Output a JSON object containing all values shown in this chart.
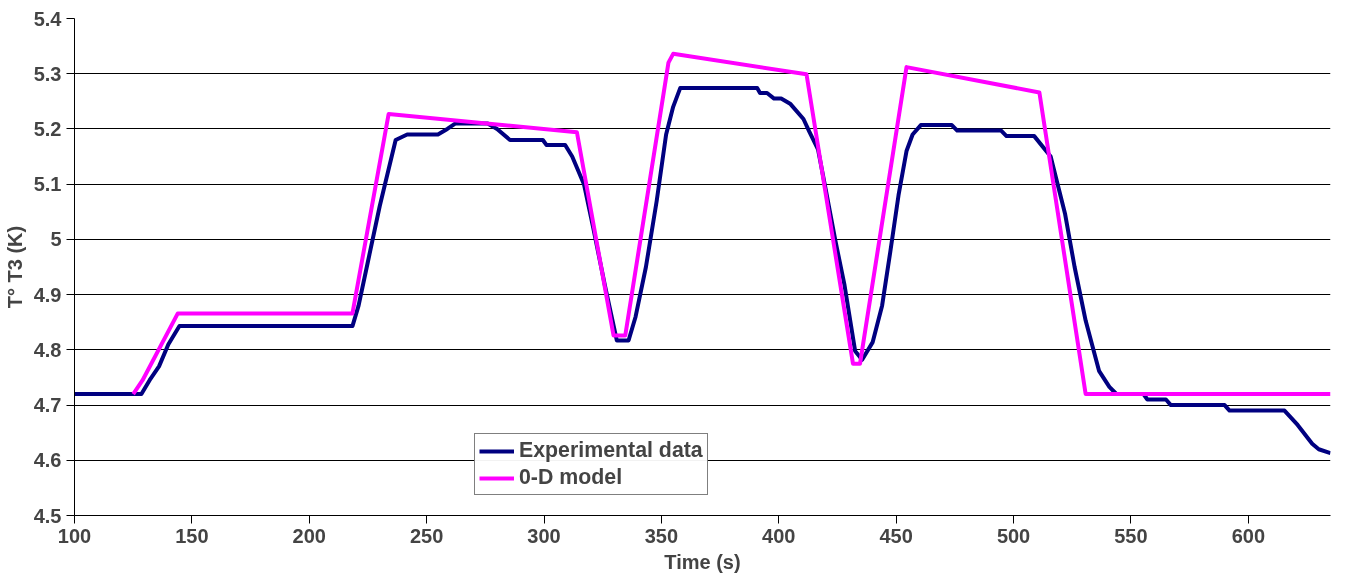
{
  "chart_data": {
    "type": "line",
    "xlabel": "Time (s)",
    "ylabel": "T° T3 (K)",
    "xlim": [
      100,
      635
    ],
    "ylim": [
      4.5,
      5.4
    ],
    "xticks": [
      100,
      150,
      200,
      250,
      300,
      350,
      400,
      450,
      500,
      550,
      600
    ],
    "yticks": [
      4.5,
      4.6,
      4.7,
      4.8,
      4.9,
      5,
      5.1,
      5.2,
      5.3,
      5.4
    ],
    "grid": "y",
    "legend": "bottom",
    "marker": "none",
    "line_style": "solid",
    "series": [
      {
        "name": "Experimental data",
        "color": "#000080",
        "x": [
          100,
          128.5,
          132,
          136,
          140,
          144.7,
          218.4,
          221,
          225,
          230,
          236.8,
          241.7,
          254.8,
          258.8,
          262.3,
          276,
          280,
          285.5,
          299.5,
          301,
          309,
          312,
          317,
          321,
          325.9,
          331,
          336,
          339,
          343.4,
          348,
          352,
          355,
          358,
          390.8,
          392,
          395,
          398,
          401,
          405,
          410.5,
          413,
          416.7,
          420,
          424,
          428,
          432.5,
          435.5,
          440,
          444,
          447.4,
          451,
          454.4,
          457,
          460.5,
          473.7,
          476,
          494.7,
          497,
          508.8,
          515.8,
          521.9,
          526,
          530.7,
          536.4,
          540.8,
          543.8,
          555.3,
          557,
          564.9,
          567,
          589.9,
          592,
          615.4,
          621,
          627.2,
          630,
          635
        ],
        "values": [
          4.72,
          4.72,
          4.745,
          4.77,
          4.81,
          4.843,
          4.843,
          4.88,
          4.96,
          5.06,
          5.18,
          5.19,
          5.19,
          5.2,
          5.21,
          5.21,
          5.2,
          5.18,
          5.18,
          5.171,
          5.171,
          5.15,
          5.1,
          5.02,
          4.917,
          4.817,
          4.817,
          4.86,
          4.95,
          5.07,
          5.19,
          5.24,
          5.274,
          5.274,
          5.265,
          5.265,
          5.255,
          5.255,
          5.245,
          5.218,
          5.195,
          5.163,
          5.09,
          5.0,
          4.917,
          4.798,
          4.782,
          4.814,
          4.88,
          4.975,
          5.08,
          5.16,
          5.19,
          5.207,
          5.207,
          5.197,
          5.197,
          5.187,
          5.187,
          5.15,
          5.047,
          4.95,
          4.853,
          4.762,
          4.733,
          4.72,
          4.72,
          4.71,
          4.71,
          4.7,
          4.7,
          4.69,
          4.69,
          4.664,
          4.63,
          4.62,
          4.613
        ]
      },
      {
        "name": "0-D model",
        "color": "#ff00ff",
        "x": [
          125,
          129,
          144,
          218.4,
          233.8,
          314,
          329.6,
          334.6,
          353,
          355,
          411.8,
          431.6,
          434.6,
          454.4,
          511,
          530.7,
          635
        ],
        "values": [
          4.72,
          4.745,
          4.866,
          4.866,
          5.227,
          5.194,
          4.826,
          4.826,
          5.32,
          5.336,
          5.299,
          4.775,
          4.775,
          5.312,
          5.266,
          4.72,
          4.72
        ]
      }
    ]
  }
}
